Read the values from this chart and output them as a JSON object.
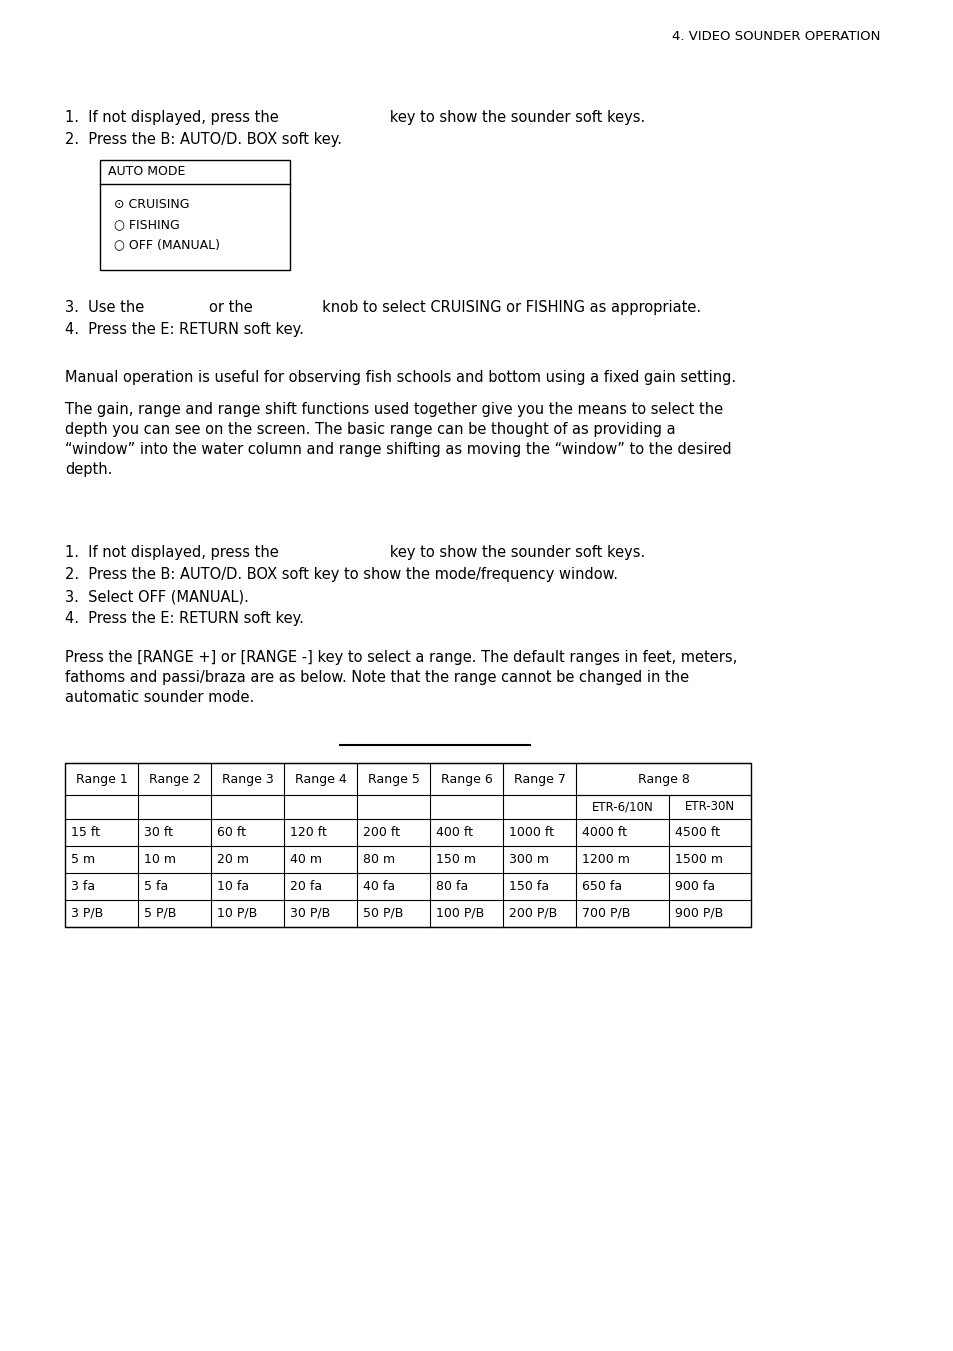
{
  "header": "4. VIDEO SOUNDER OPERATION",
  "section1_lines": [
    "1.  If not displayed, press the                        key to show the sounder soft keys.",
    "2.  Press the B: AUTO/D. BOX soft key."
  ],
  "automode_box_title": "AUTO MODE",
  "automode_items": [
    "⊙ CRUISING",
    "○ FISHING",
    "○ OFF (MANUAL)"
  ],
  "section1b_lines": [
    "3.  Use the              or the               knob to select CRUISING or FISHING as appropriate.",
    "4.  Press the E: RETURN soft key."
  ],
  "manual_para1": "Manual operation is useful for observing fish schools and bottom using a fixed gain setting.",
  "manual_para2_lines": [
    "The gain, range and range shift functions used together give you the means to select the",
    "depth you can see on the screen. The basic range can be thought of as providing a",
    "“window” into the water column and range shifting as moving the “window” to the desired",
    "depth."
  ],
  "section2_lines": [
    "1.  If not displayed, press the                        key to show the sounder soft keys.",
    "2.  Press the B: AUTO/D. BOX soft key to show the mode/frequency window.",
    "3.  Select OFF (MANUAL).",
    "4.  Press the E: RETURN soft key."
  ],
  "range_intro_lines": [
    "Press the [RANGE +] or [RANGE -] key to select a range. The default ranges in feet, meters,",
    "fathoms and passi/braza are as below. Note that the range cannot be changed in the",
    "automatic sounder mode."
  ],
  "table_data": [
    [
      "15 ft",
      "30 ft",
      "60 ft",
      "120 ft",
      "200 ft",
      "400 ft",
      "1000 ft",
      "4000 ft",
      "4500 ft"
    ],
    [
      "5 m",
      "10 m",
      "20 m",
      "40 m",
      "80 m",
      "150 m",
      "300 m",
      "1200 m",
      "1500 m"
    ],
    [
      "3 fa",
      "5 fa",
      "10 fa",
      "20 fa",
      "40 fa",
      "80 fa",
      "150 fa",
      "650 fa",
      "900 fa"
    ],
    [
      "3 P/B",
      "5 P/B",
      "10 P/B",
      "30 P/B",
      "50 P/B",
      "100 P/B",
      "200 P/B",
      "700 P/B",
      "900 P/B"
    ]
  ],
  "bg_color": "#ffffff",
  "text_color": "#000000",
  "font_size": 10.5,
  "header_font_size": 9.5
}
